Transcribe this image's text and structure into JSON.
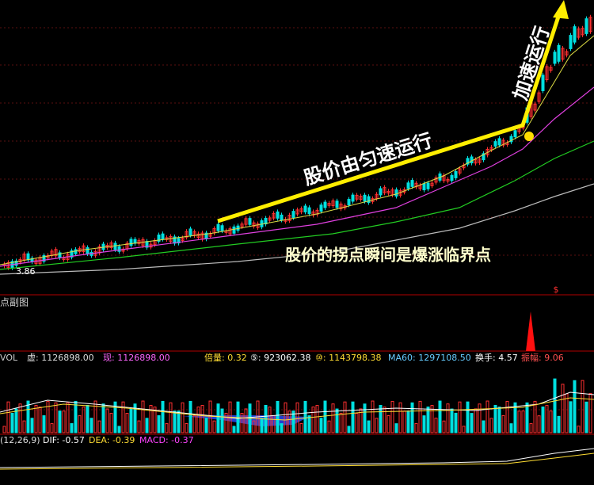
{
  "main_panel": {
    "low_label": "3.86",
    "marker": "$"
  },
  "annotations": {
    "steady": "股价由匀速运行",
    "accelerate": "加速运行",
    "turning_point": "股价的拐点瞬间是爆涨临界点"
  },
  "sub_panel": {
    "title": "点副图"
  },
  "volume_panel": {
    "items": [
      "VOL",
      "虚: 1126898.00",
      "现: 1126898.00",
      "倍量: 0.32",
      "⑤: 923062.38",
      "⑩: 1143798.38",
      "MA60: 1297108.50",
      "换手: 4.57",
      "振幅: 9.06"
    ]
  },
  "macd_panel": {
    "items": [
      "(12,26,9)",
      "DIF: -0.57",
      "DEA: -0.39",
      "MACD: -0.37"
    ]
  }
}
